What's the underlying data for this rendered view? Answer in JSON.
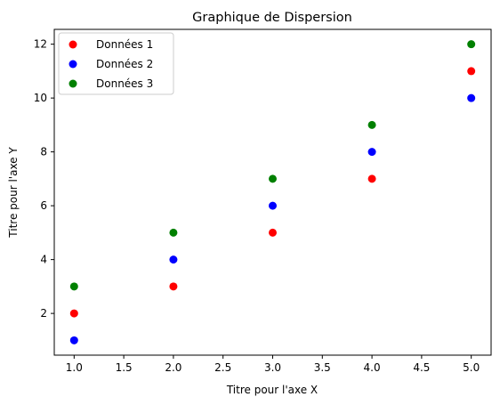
{
  "chart_data": {
    "type": "scatter",
    "title": "Graphique de Dispersion",
    "xlabel": "Titre pour l'axe X",
    "ylabel": "Titre pour l'axe Y",
    "xlim": [
      0.8,
      5.2
    ],
    "ylim": [
      0.45,
      12.55
    ],
    "x_ticks": [
      1.0,
      1.5,
      2.0,
      2.5,
      3.0,
      3.5,
      4.0,
      4.5,
      5.0
    ],
    "x_tick_labels": [
      "1.0",
      "1.5",
      "2.0",
      "2.5",
      "3.0",
      "3.5",
      "4.0",
      "4.5",
      "5.0"
    ],
    "y_ticks": [
      2,
      4,
      6,
      8,
      10,
      12
    ],
    "y_tick_labels": [
      "2",
      "4",
      "6",
      "8",
      "10",
      "12"
    ],
    "grid": false,
    "legend_position": "top-left",
    "series": [
      {
        "name": "Données 1",
        "color": "#ff0000",
        "x": [
          1,
          2,
          3,
          4,
          5
        ],
        "y": [
          2,
          3,
          5,
          7,
          11
        ]
      },
      {
        "name": "Données 2",
        "color": "#0000ff",
        "x": [
          1,
          2,
          3,
          4,
          5
        ],
        "y": [
          1,
          4,
          6,
          8,
          10
        ]
      },
      {
        "name": "Données 3",
        "color": "#008000",
        "x": [
          1,
          2,
          3,
          4,
          5
        ],
        "y": [
          3,
          5,
          7,
          9,
          12
        ]
      }
    ]
  }
}
